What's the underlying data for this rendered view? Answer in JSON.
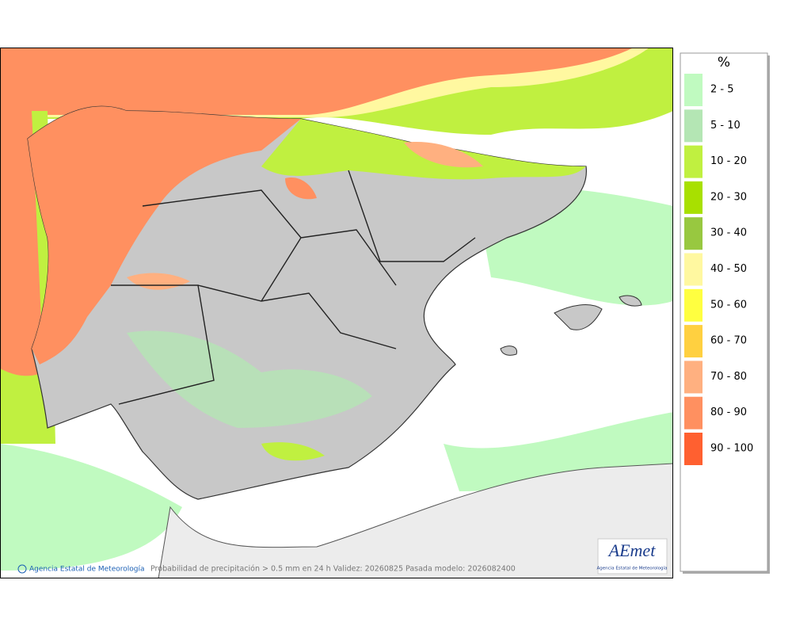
{
  "legend": {
    "title": "%",
    "items": [
      {
        "label": "2 - 5",
        "color": "#c0fac0"
      },
      {
        "label": "5 - 10",
        "color": "#b4e6b4"
      },
      {
        "label": "10 - 20",
        "color": "#c0f040"
      },
      {
        "label": "20 - 30",
        "color": "#a8e000"
      },
      {
        "label": "30 - 40",
        "color": "#98c840"
      },
      {
        "label": "40 - 50",
        "color": "#fff8a0"
      },
      {
        "label": "50 - 60",
        "color": "#ffff40"
      },
      {
        "label": "60 - 70",
        "color": "#ffd040"
      },
      {
        "label": "70 - 80",
        "color": "#ffb080"
      },
      {
        "label": "80 - 90",
        "color": "#ff9060"
      },
      {
        "label": "90 - 100",
        "color": "#ff6030"
      }
    ]
  },
  "footer": {
    "agency": "Agencia Estatal de Meteorología",
    "caption": "Probabilidad de precipitación > 0.5 mm en 24 h Validez: 20260825 Pasada modelo: 2026082400"
  },
  "logo": {
    "text": "AEmet",
    "subtitle": "Agencia Estatal de Meteorología"
  }
}
